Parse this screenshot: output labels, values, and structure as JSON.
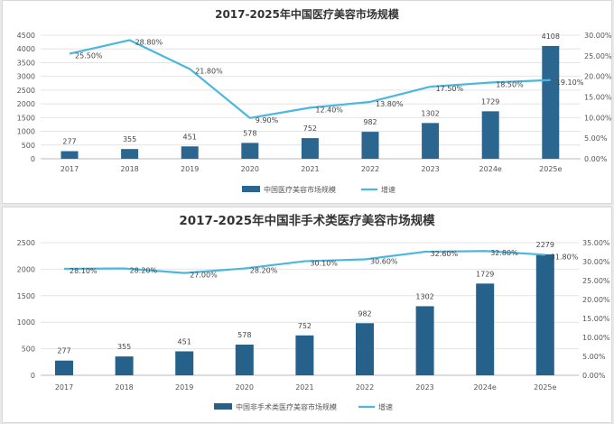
{
  "chart_data": [
    {
      "type": "bar",
      "title": "2017-2025年中国医疗美容市场规模",
      "categories": [
        "2017",
        "2018",
        "2019",
        "2020",
        "2021",
        "2022",
        "2023",
        "2024e",
        "2025e"
      ],
      "series": [
        {
          "name": "中国医疗美容市场规模",
          "type": "bar",
          "axis": "left",
          "values": [
            277,
            355,
            451,
            578,
            752,
            982,
            1302,
            1729,
            4108
          ]
        },
        {
          "name": "增速",
          "type": "line",
          "axis": "right",
          "values": [
            25.5,
            28.8,
            21.8,
            9.9,
            12.4,
            13.8,
            17.5,
            18.5,
            19.1
          ],
          "labels": [
            "25.50%",
            "28.80%",
            "21.80%",
            "9.90%",
            "12.40%",
            "13.80%",
            "17.50%",
            "18.50%",
            "19.10%"
          ]
        }
      ],
      "ylim": [
        0,
        4500
      ],
      "yticks": [
        "0",
        "500",
        "1000",
        "1500",
        "2000",
        "2500",
        "3000",
        "3500",
        "4000",
        "4500"
      ],
      "y2lim": [
        0,
        30
      ],
      "y2ticks": [
        "0.00%",
        "5.00%",
        "10.00%",
        "15.00%",
        "20.00%",
        "25.00%",
        "30.00%"
      ],
      "grid": true,
      "legend": "bottom",
      "colors": {
        "bar": "#2b6690",
        "line": "#4bb6e0"
      }
    },
    {
      "type": "bar",
      "title": "2017-2025年中国非手术类医疗美容市场规模",
      "categories": [
        "2017",
        "2018",
        "2019",
        "2020",
        "2021",
        "2022",
        "2023",
        "2024e",
        "2025e"
      ],
      "series": [
        {
          "name": "中国非手术类医疗美容市场规模",
          "type": "bar",
          "axis": "left",
          "values": [
            277,
            355,
            451,
            578,
            752,
            982,
            1302,
            1729,
            2279
          ]
        },
        {
          "name": "增速",
          "type": "line",
          "axis": "right",
          "values": [
            28.1,
            28.2,
            27.0,
            28.2,
            30.1,
            30.6,
            32.6,
            32.8,
            31.8
          ],
          "labels": [
            "28.10%",
            "28.20%",
            "27.00%",
            "28.20%",
            "30.10%",
            "30.60%",
            "32.60%",
            "32.80%",
            "31.80%"
          ]
        }
      ],
      "ylim": [
        0,
        2500
      ],
      "yticks": [
        "0",
        "500",
        "1000",
        "1500",
        "2000",
        "2500"
      ],
      "y2lim": [
        0,
        35
      ],
      "y2ticks": [
        "0.00%",
        "5.00%",
        "10.00%",
        "15.00%",
        "20.00%",
        "25.00%",
        "30.00%",
        "35.00%"
      ],
      "grid": true,
      "legend": "bottom",
      "colors": {
        "bar": "#26618c",
        "line": "#4bb6e0"
      }
    }
  ]
}
